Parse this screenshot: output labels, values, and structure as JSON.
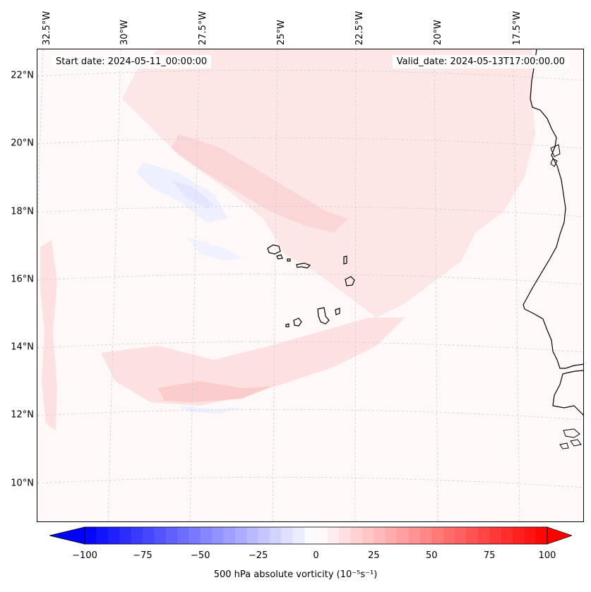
{
  "header": {
    "start_date": "Start date: 2024-05-11_00:00:00",
    "valid_date": "Valid_date: 2024-05-13T17:00:00.00"
  },
  "map": {
    "projection": "lambert-conformal",
    "extent": {
      "lon_min": -33,
      "lon_max": -15.5,
      "lat_min": 8.8,
      "lat_max": 22.8
    },
    "lat_ticks": [
      "22°N",
      "20°N",
      "18°N",
      "16°N",
      "14°N",
      "12°N",
      "10°N"
    ],
    "lon_ticks": [
      "32.5°W",
      "30°W",
      "27.5°W",
      "25°W",
      "22.5°W",
      "20°W",
      "17.5°W"
    ],
    "gridlines": true,
    "features": [
      "coastline-africa",
      "cape-verde-islands"
    ]
  },
  "colorbar": {
    "min": -100,
    "max": 100,
    "ticks": [
      "−100",
      "−75",
      "−50",
      "−25",
      "0",
      "25",
      "50",
      "75",
      "100"
    ],
    "label": "500 hPa absolute vorticity (10⁻⁵s⁻¹)",
    "cmap": "bwr",
    "extend": "both",
    "neg_color": "#0000ff",
    "pos_color": "#ff0000",
    "mid_color": "#ffffff"
  }
}
